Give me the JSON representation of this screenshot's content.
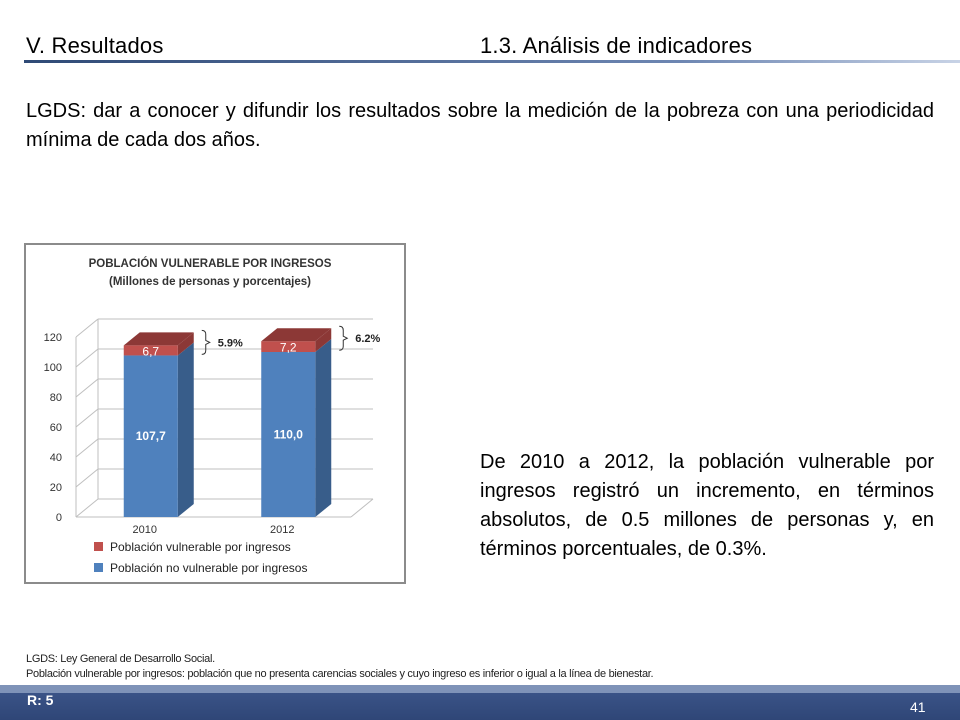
{
  "header": {
    "section": "V. Resultados",
    "subsection": "1.3. Análisis de indicadores"
  },
  "intro_text": "LGDS: dar a conocer y difundir los resultados sobre la medición de la pobreza con una periodicidad mínima de cada dos años.",
  "description": "De 2010 a 2012, la población vulnerable por ingresos registró un incremento, en términos absolutos, de 0.5 millones de personas y, en términos porcentuales, de 0.3%.",
  "chart_data": {
    "type": "bar",
    "stacked": true,
    "style": "3d",
    "title": "POBLACIÓN VULNERABLE POR INGRESOS",
    "subtitle": "(Millones de personas y porcentajes)",
    "categories": [
      "2010",
      "2012"
    ],
    "ylim": [
      0,
      120
    ],
    "yticks": [
      0,
      20,
      40,
      60,
      80,
      100,
      120
    ],
    "series": [
      {
        "name": "Población no vulnerable por ingresos",
        "values": [
          107.7,
          110.0
        ],
        "labels": [
          "107,7",
          "110,0"
        ],
        "color": "#4f81bd",
        "side_color": "#385d8a"
      },
      {
        "name": "Población vulnerable por ingresos",
        "values": [
          6.7,
          7.2
        ],
        "labels": [
          "6,7",
          "7,2"
        ],
        "color": "#c0504d",
        "side_color": "#8c3836"
      }
    ],
    "percent_annotations": [
      "5.9%",
      "6.2%"
    ],
    "legend_position": "bottom",
    "grid": true
  },
  "notes": [
    "LGDS: Ley General de Desarrollo Social.",
    "Población vulnerable por ingresos: población que no presenta carencias sociales y cuyo ingreso es inferior o igual a la línea de bienestar."
  ],
  "footer": {
    "label": "R: 5",
    "page": "41"
  }
}
